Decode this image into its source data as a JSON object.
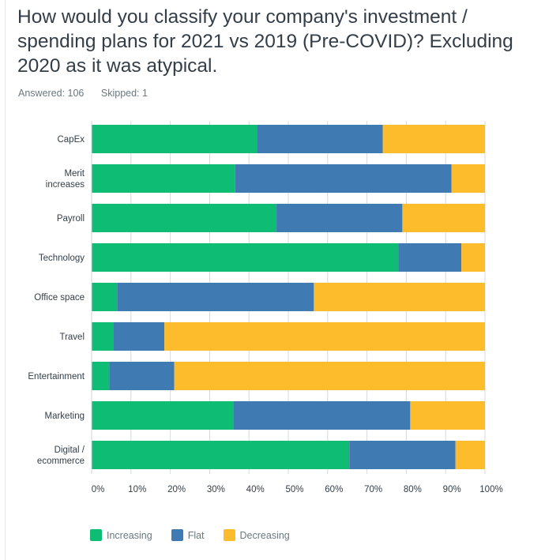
{
  "question": {
    "title": "How would you classify your company's investment / spending plans for 2021 vs 2019 (Pre-COVID)? Excluding 2020 as it was atypical."
  },
  "stats": {
    "answered": "Answered: 106",
    "skipped": "Skipped: 1"
  },
  "colors": {
    "increasing": "#0fbc74",
    "flat": "#3f7ab3",
    "decreasing": "#fdbc2c"
  },
  "chart_data": {
    "type": "bar",
    "orientation": "horizontal",
    "stacked": true,
    "categories": [
      "CapEx",
      "Merit increases",
      "Payroll",
      "Technology",
      "Office space",
      "Travel",
      "Entertainment",
      "Marketing",
      "Digital / ecommerce"
    ],
    "category_lines": [
      [
        "CapEx"
      ],
      [
        "Merit",
        "increases"
      ],
      [
        "Payroll"
      ],
      [
        "Technology"
      ],
      [
        "Office space"
      ],
      [
        "Travel"
      ],
      [
        "Entertainment"
      ],
      [
        "Marketing"
      ],
      [
        "Digital /",
        "ecommerce"
      ]
    ],
    "series": [
      {
        "name": "Increasing",
        "values": [
          42,
          36.5,
          47,
          78,
          6.5,
          5.5,
          4.5,
          36,
          65.5
        ]
      },
      {
        "name": "Flat",
        "values": [
          32,
          55,
          32,
          16,
          50,
          13,
          16.5,
          45,
          27
        ]
      },
      {
        "name": "Decreasing",
        "values": [
          26,
          8.5,
          21,
          6,
          43.5,
          81.5,
          79,
          19,
          7.5
        ]
      }
    ],
    "xlim": [
      0,
      100
    ],
    "xticks": [
      "0%",
      "10%",
      "20%",
      "30%",
      "40%",
      "50%",
      "60%",
      "70%",
      "80%",
      "90%",
      "100%"
    ],
    "grid": true,
    "legend": "bottom-left"
  }
}
